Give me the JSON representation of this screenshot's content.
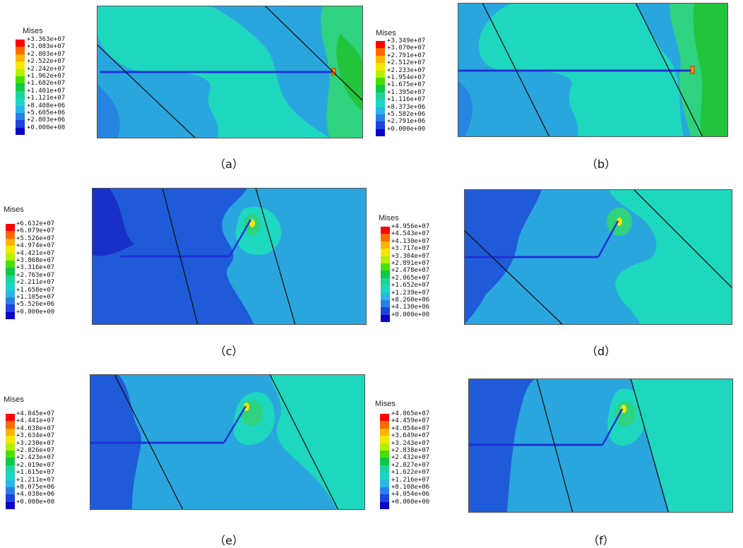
{
  "legend_title": "Mises",
  "legend_colors": [
    "#ff0000",
    "#ff6a00",
    "#ffb400",
    "#f3e600",
    "#b4f000",
    "#48e000",
    "#10c848",
    "#1ed39a",
    "#19d7c4",
    "#29b6e6",
    "#2a7ee8",
    "#1d44dc",
    "#0a00c8"
  ],
  "panels": [
    {
      "caption": "（a）",
      "legend_values": [
        "+3.363e+07",
        "+3.083e+07",
        "+2.803e+07",
        "+2.522e+07",
        "+2.242e+07",
        "+1.962e+07",
        "+1.682e+07",
        "+1.401e+07",
        "+1.121e+07",
        "+8.408e+06",
        "+5.605e+06",
        "+2.803e+06",
        "+0.000e+00"
      ]
    },
    {
      "caption": "（b）",
      "legend_values": [
        "+3.349e+07",
        "+3.070e+07",
        "+2.791e+07",
        "+2.512e+07",
        "+2.233e+07",
        "+1.954e+07",
        "+1.675e+07",
        "+1.395e+07",
        "+1.116e+07",
        "+8.373e+06",
        "+5.582e+06",
        "+2.791e+06",
        "+0.000e+00"
      ]
    },
    {
      "caption": "（c）",
      "legend_values": [
        "+6.632e+07",
        "+6.079e+07",
        "+5.526e+07",
        "+4.974e+07",
        "+4.421e+07",
        "+3.868e+07",
        "+3.316e+07",
        "+2.763e+07",
        "+2.211e+07",
        "+1.658e+07",
        "+1.105e+07",
        "+5.526e+06",
        "+0.000e+00"
      ]
    },
    {
      "caption": "（d）",
      "legend_values": [
        "+4.956e+07",
        "+4.543e+07",
        "+4.130e+07",
        "+3.717e+07",
        "+3.304e+07",
        "+2.891e+07",
        "+2.478e+07",
        "+2.065e+07",
        "+1.652e+07",
        "+1.239e+07",
        "+8.260e+06",
        "+4.130e+06",
        "+0.000e+00"
      ]
    },
    {
      "caption": "（e）",
      "legend_values": [
        "+4.845e+07",
        "+4.441e+07",
        "+4.038e+07",
        "+3.634e+07",
        "+3.230e+07",
        "+2.826e+07",
        "+2.423e+07",
        "+2.019e+07",
        "+1.615e+07",
        "+1.211e+07",
        "+8.075e+06",
        "+4.038e+06",
        "+0.000e+00"
      ]
    },
    {
      "caption": "（f）",
      "legend_values": [
        "+4.865e+07",
        "+4.459e+07",
        "+4.054e+07",
        "+3.649e+07",
        "+3.243e+07",
        "+2.838e+07",
        "+2.432e+07",
        "+2.027e+07",
        "+1.622e+07",
        "+1.216e+07",
        "+8.108e+06",
        "+4.054e+06",
        "+0.000e+00"
      ]
    }
  ]
}
